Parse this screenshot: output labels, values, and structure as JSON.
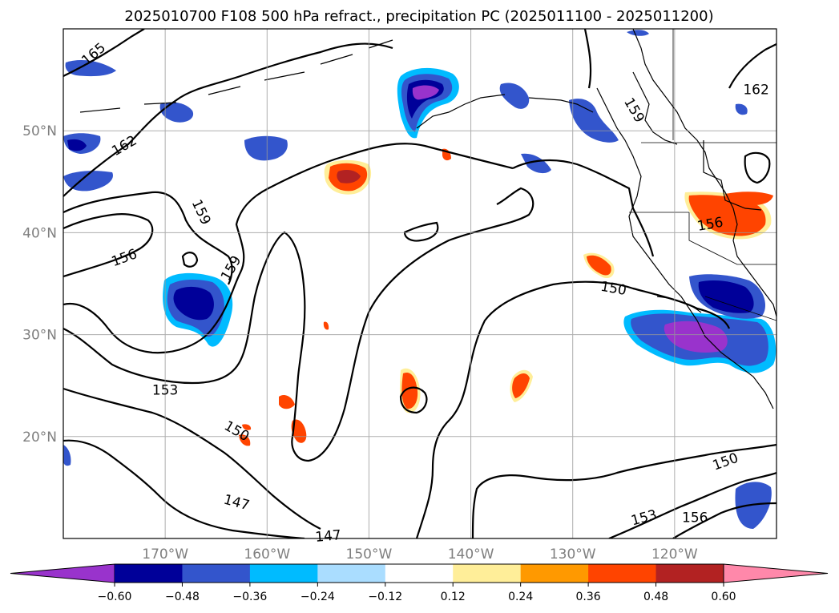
{
  "title": "2025010700 F108 500 hPa refract., precipitation PC (2025011100 - 2025011200)",
  "chart_data": {
    "type": "map",
    "variable": "500 hPa refract., precipitation PC",
    "lon_range": [
      -180,
      -110
    ],
    "lat_range": [
      10,
      60
    ],
    "grid": true,
    "lat_ticks": [
      {
        "value": 20,
        "label": "20°N"
      },
      {
        "value": 30,
        "label": "30°N"
      },
      {
        "value": 40,
        "label": "40°N"
      },
      {
        "value": 50,
        "label": "50°N"
      }
    ],
    "lon_ticks": [
      {
        "value": -170,
        "label": "170°W"
      },
      {
        "value": -160,
        "label": "160°W"
      },
      {
        "value": -150,
        "label": "150°W"
      },
      {
        "value": -140,
        "label": "140°W"
      },
      {
        "value": -130,
        "label": "130°W"
      },
      {
        "value": -120,
        "label": "120°W"
      }
    ],
    "contour_labels": [
      {
        "text": "165",
        "lon": -177,
        "lat": 57.5,
        "angle": -40
      },
      {
        "text": "162",
        "lon": -174,
        "lat": 48.5,
        "angle": -30
      },
      {
        "text": "159",
        "lon": -166.5,
        "lat": 42,
        "angle": 65
      },
      {
        "text": "156",
        "lon": -174,
        "lat": 37.5,
        "angle": -20
      },
      {
        "text": "159",
        "lon": -163.5,
        "lat": 36.5,
        "angle": -60
      },
      {
        "text": "153",
        "lon": -170,
        "lat": 24.5,
        "angle": 0
      },
      {
        "text": "150",
        "lon": -163,
        "lat": 20.5,
        "angle": 30
      },
      {
        "text": "147",
        "lon": -163,
        "lat": 13.5,
        "angle": 15
      },
      {
        "text": "147",
        "lon": -154,
        "lat": 10.2,
        "angle": -5
      },
      {
        "text": "150",
        "lon": -126,
        "lat": 34.5,
        "angle": 10
      },
      {
        "text": "150",
        "lon": -115,
        "lat": 17.5,
        "angle": -20
      },
      {
        "text": "153",
        "lon": -123,
        "lat": 12,
        "angle": -15
      },
      {
        "text": "156",
        "lon": -118,
        "lat": 12,
        "angle": 0
      },
      {
        "text": "156",
        "lon": -116.5,
        "lat": 40.8,
        "angle": -10
      },
      {
        "text": "159",
        "lon": -124,
        "lat": 52,
        "angle": 60
      },
      {
        "text": "162",
        "lon": -112,
        "lat": 54,
        "angle": 0
      }
    ],
    "colorbar": {
      "levels": [
        -0.6,
        -0.48,
        -0.36,
        -0.24,
        -0.12,
        0.12,
        0.24,
        0.36,
        0.48,
        0.6
      ],
      "tick_labels": [
        "−0.60",
        "−0.48",
        "−0.36",
        "−0.24",
        "−0.12",
        "0.12",
        "0.24",
        "0.36",
        "0.48",
        "0.60"
      ],
      "colors": [
        "#9933CC",
        "#000099",
        "#3355CC",
        "#00BBFF",
        "#AADDFF",
        "#FFFFFF",
        "#FFEE99",
        "#FF9900",
        "#FF4400",
        "#B22222",
        "#FF88AA"
      ],
      "extend": "both"
    }
  }
}
